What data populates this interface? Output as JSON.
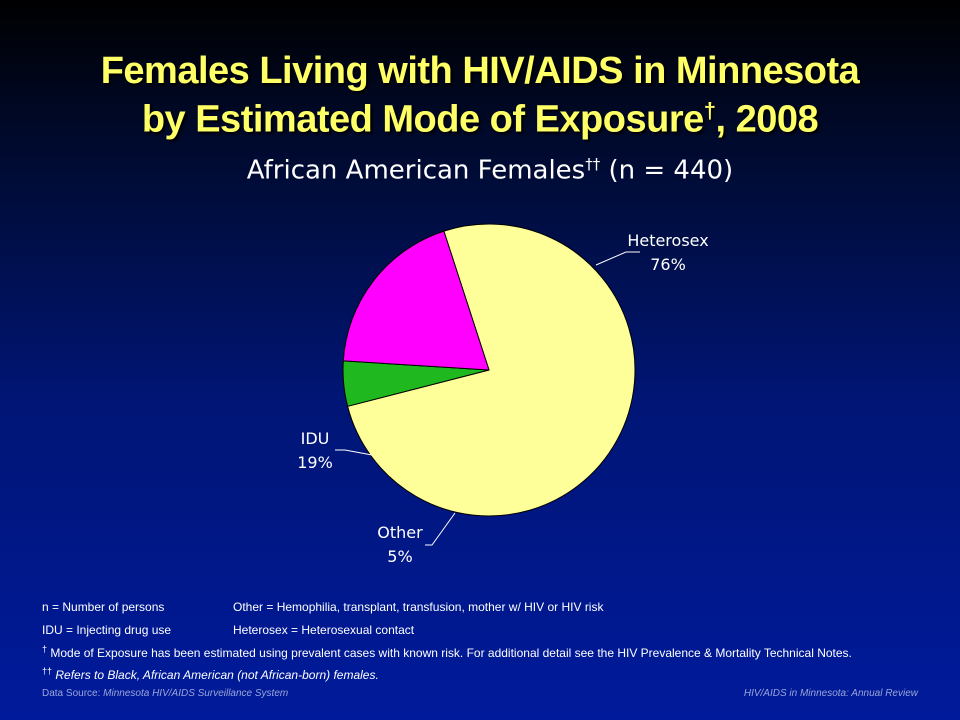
{
  "title": {
    "line1": "Females Living with HIV/AIDS in Minnesota",
    "line2_pre": "by Estimated Mode of Exposure",
    "line2_sup": "†",
    "line2_post": ", 2008"
  },
  "subtitle": {
    "pre": "African American Females",
    "sup": "††",
    "post": " (n = 440)"
  },
  "chart_data": {
    "type": "pie",
    "title": "African American Females†† (n = 440)",
    "slices": [
      {
        "label": "Heterosex",
        "value": 76,
        "display": "76%",
        "color": "#ffff99"
      },
      {
        "label": "Other",
        "value": 5,
        "display": "5%",
        "color": "#1fb81f"
      },
      {
        "label": "IDU",
        "value": 19,
        "display": "19%",
        "color": "#ff00ff"
      }
    ]
  },
  "notes": {
    "row1_left": "n = Number of persons",
    "row1_right": "Other = Hemophilia, transplant, transfusion, mother w/ HIV or HIV risk",
    "row2_left": "IDU = Injecting drug use",
    "row2_right": "Heterosex = Heterosexual contact",
    "row3_sup": "†",
    "row3_text": " Mode of Exposure has been estimated using prevalent cases with known risk. For additional detail see the HIV Prevalence & Mortality Technical Notes.",
    "row4_sup": "††",
    "row4_text": " Refers to Black, African American (not African-born) females."
  },
  "footer": {
    "source_label": "Data Source: ",
    "source_value": "Minnesota HIV/AIDS Surveillance System",
    "right": "HIV/AIDS in Minnesota: Annual Review"
  }
}
